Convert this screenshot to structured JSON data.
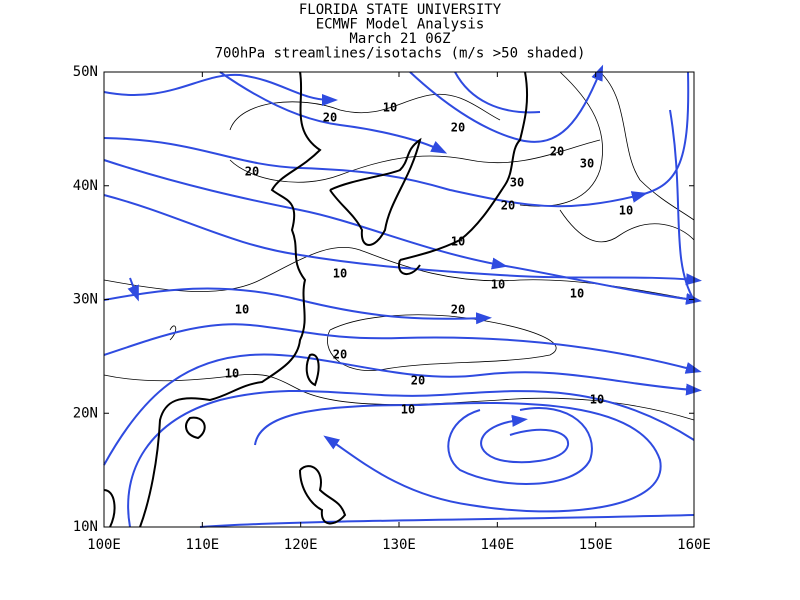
{
  "header": {
    "lines": [
      "FLORIDA STATE UNIVERSITY",
      "ECMWF Model Analysis",
      "March 21 06Z",
      "700hPa streamlines/isotachs (m/s >50 shaded)"
    ]
  },
  "axes": {
    "lon_labels": [
      "100E",
      "110E",
      "120E",
      "130E",
      "140E",
      "150E",
      "160E"
    ],
    "lat_labels": [
      "50N",
      "40N",
      "30N",
      "20N",
      "10N"
    ]
  },
  "contour_labels": [
    "10",
    "20",
    "20",
    "20",
    "20",
    "30",
    "30",
    "20",
    "10",
    "10",
    "10",
    "10",
    "10",
    "10",
    "20",
    "20",
    "10",
    "20",
    "10",
    "10"
  ]
}
